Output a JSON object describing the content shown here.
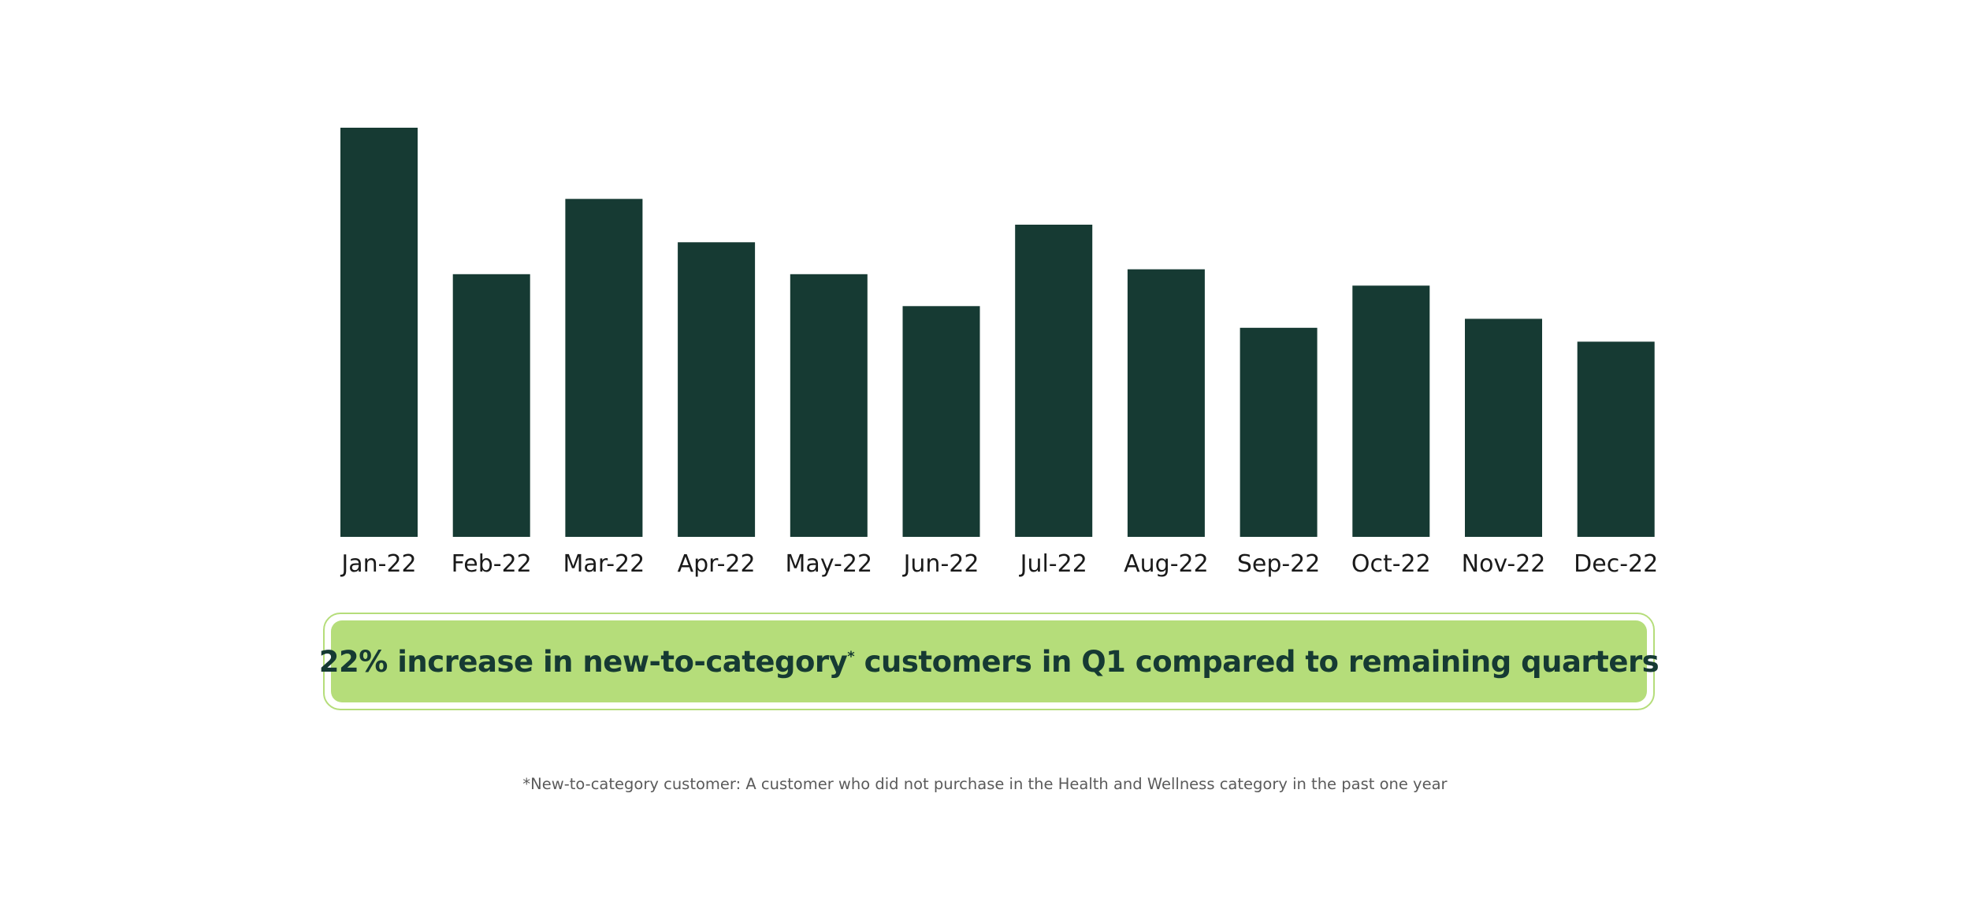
{
  "chart_data": {
    "type": "bar",
    "categories": [
      "Jan-22",
      "Feb-22",
      "Mar-22",
      "Apr-22",
      "May-22",
      "Jun-22",
      "Jul-22",
      "Aug-22",
      "Sep-22",
      "Oct-22",
      "Nov-22",
      "Dec-22"
    ],
    "values": [
      100,
      64.2,
      82.6,
      72.0,
      64.2,
      56.4,
      76.3,
      65.4,
      51.1,
      61.4,
      53.3,
      47.7
    ],
    "title": "",
    "xlabel": "",
    "ylabel": "",
    "ylim": [
      0,
      100
    ],
    "grid": false,
    "legend": "none",
    "bar_color": "#163a33"
  },
  "callout": {
    "highlight": "22% increase",
    "text_before_mark": " in new-to-category",
    "mark": "*",
    "text_after_mark": " customers in Q1 compared to remaining quarters",
    "fill_color": "#b5dd7a",
    "text_color": "#163a33"
  },
  "footnote": "*New-to-category customer: A customer who did not purchase in the Health and Wellness category in the past one year"
}
